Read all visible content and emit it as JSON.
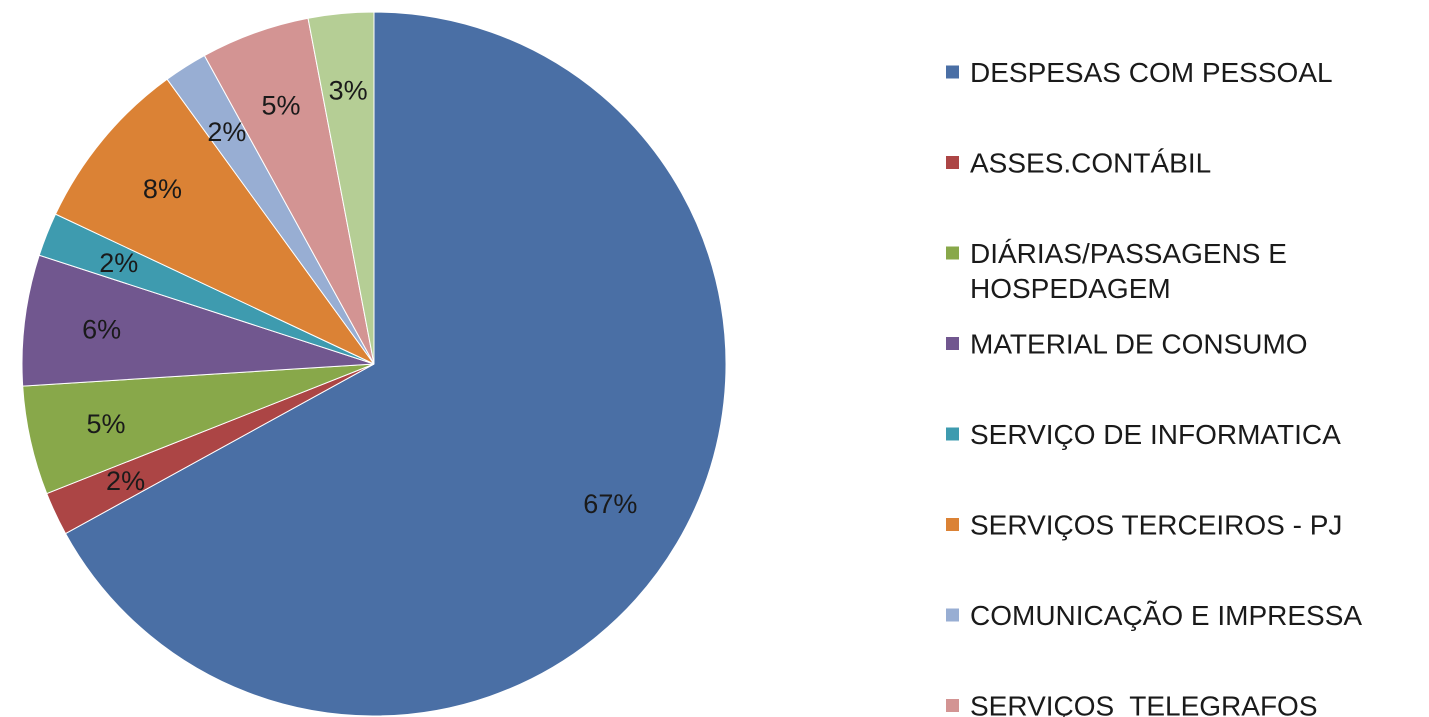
{
  "chart_data": {
    "type": "pie",
    "title": "",
    "legend_position": "right",
    "slices": [
      {
        "label": "DESPESAS COM PESSOAL",
        "value": 67,
        "value_label": "67%",
        "color": "#4A6FA5"
      },
      {
        "label": "ASSES.CONTÁBIL",
        "value": 2,
        "value_label": "2%",
        "color": "#AC4545"
      },
      {
        "label": "DIÁRIAS/PASSAGENS E HOSPEDAGEM",
        "value": 5,
        "value_label": "5%",
        "color": "#88A84A"
      },
      {
        "label": "MATERIAL DE CONSUMO",
        "value": 6,
        "value_label": "6%",
        "color": "#71578F"
      },
      {
        "label": "SERVIÇO DE INFORMATICA",
        "value": 2,
        "value_label": "2%",
        "color": "#3E9BAF"
      },
      {
        "label": "SERVIÇOS TERCEIROS - PJ",
        "value": 8,
        "value_label": "8%",
        "color": "#DB8235"
      },
      {
        "label": "COMUNICAÇÃO E IMPRESSA",
        "value": 2,
        "value_label": "2%",
        "color": "#98AED3"
      },
      {
        "label": "SERVIÇOS  TELEGRAFOS",
        "value": 5,
        "value_label": "5%",
        "color": "#D39493"
      },
      {
        "label": "",
        "value": 3,
        "value_label": "3%",
        "color": "#B5CE95"
      }
    ]
  }
}
